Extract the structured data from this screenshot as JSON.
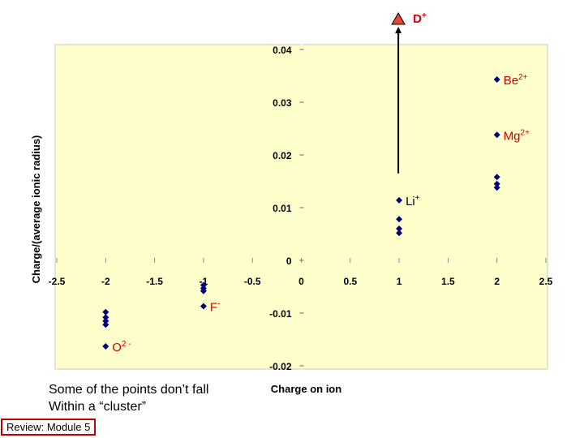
{
  "chart_data": {
    "type": "scatter",
    "xlabel": "Charge on ion",
    "ylabel": "Charge/(average ionic radius)",
    "xlim": [
      -2.5,
      2.5
    ],
    "ylim": [
      -0.02,
      0.04
    ],
    "x_ticks": [
      "-2.5",
      "-2",
      "-1.5",
      "-1",
      "-0.5",
      "0",
      "0.5",
      "1",
      "1.5",
      "2",
      "2.5"
    ],
    "y_ticks": [
      "0.04",
      "0.03",
      "0.02",
      "0.01",
      "0",
      "-0.01",
      "-0.02"
    ],
    "grid": false,
    "plot_background": "#ffffcc",
    "point_color": "#000080",
    "points": [
      {
        "x": -2,
        "y": -0.0098
      },
      {
        "x": -2,
        "y": -0.0108
      },
      {
        "x": -2,
        "y": -0.0115
      },
      {
        "x": -2,
        "y": -0.0122
      },
      {
        "x": -2,
        "y": -0.0163
      },
      {
        "x": -1,
        "y": -0.0047
      },
      {
        "x": -1,
        "y": -0.0053
      },
      {
        "x": -1,
        "y": -0.0058
      },
      {
        "x": -1,
        "y": -0.0087
      },
      {
        "x": 1,
        "y": 0.0114
      },
      {
        "x": 1,
        "y": 0.0078
      },
      {
        "x": 1,
        "y": 0.006
      },
      {
        "x": 1,
        "y": 0.0052
      },
      {
        "x": 2,
        "y": 0.0343
      },
      {
        "x": 2,
        "y": 0.0238
      },
      {
        "x": 2,
        "y": 0.0158
      },
      {
        "x": 2,
        "y": 0.0145
      },
      {
        "x": 2,
        "y": 0.0138
      }
    ],
    "annotations": [
      {
        "main": "Be",
        "sup": "2+",
        "x": 2,
        "y": 0.0343,
        "color": "#cc0000"
      },
      {
        "main": "Mg",
        "sup": "2+",
        "x": 2,
        "y": 0.0238,
        "color": "#cc0000"
      },
      {
        "main": "Li",
        "sup": "+",
        "x": 1,
        "y": 0.0114,
        "color": "#000000"
      },
      {
        "main": "F",
        "sup": "-",
        "x": -1,
        "y": -0.0087,
        "color": "#cc0000"
      },
      {
        "main": "O",
        "sup": "2 -",
        "x": -2,
        "y": -0.0163,
        "color": "#cc0000"
      }
    ],
    "highlight": {
      "main": "D",
      "sup": "+",
      "x": 1,
      "y_from": 0.0165,
      "arrow_color": "#000000",
      "marker_color": "#e8452c",
      "label_color": "#cc0000"
    }
  },
  "note_lines": [
    "Some of the points don’t fall",
    "Within a “cluster”"
  ],
  "review_label": "Review: Module 5"
}
